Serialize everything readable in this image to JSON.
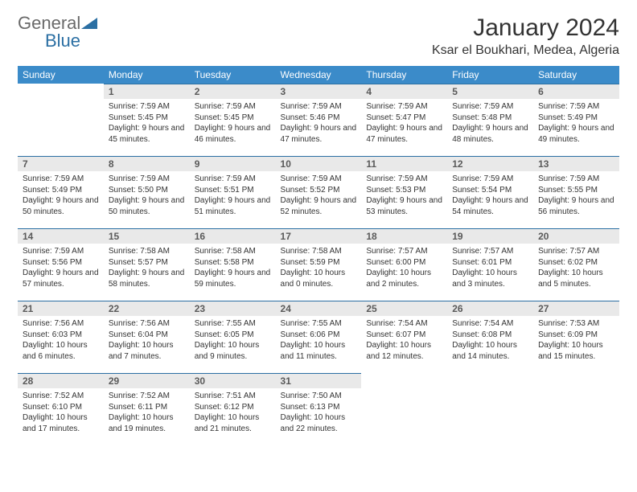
{
  "brand": {
    "name_part1": "General",
    "name_part2": "Blue",
    "part1_color": "#6a6a6a",
    "part2_color": "#2b6fa3",
    "triangle_color": "#2b6fa3"
  },
  "title": "January 2024",
  "location": "Ksar el Boukhari, Medea, Algeria",
  "colors": {
    "header_bg": "#3b8bc9",
    "header_text": "#ffffff",
    "daynum_bg": "#e9e9e9",
    "daynum_border": "#2b6fa3",
    "text": "#333333"
  },
  "weekdays": [
    "Sunday",
    "Monday",
    "Tuesday",
    "Wednesday",
    "Thursday",
    "Friday",
    "Saturday"
  ],
  "weeks": [
    [
      {
        "n": "",
        "sr": "",
        "ss": "",
        "dl": "",
        "empty": true
      },
      {
        "n": "1",
        "sr": "Sunrise: 7:59 AM",
        "ss": "Sunset: 5:45 PM",
        "dl": "Daylight: 9 hours and 45 minutes."
      },
      {
        "n": "2",
        "sr": "Sunrise: 7:59 AM",
        "ss": "Sunset: 5:45 PM",
        "dl": "Daylight: 9 hours and 46 minutes."
      },
      {
        "n": "3",
        "sr": "Sunrise: 7:59 AM",
        "ss": "Sunset: 5:46 PM",
        "dl": "Daylight: 9 hours and 47 minutes."
      },
      {
        "n": "4",
        "sr": "Sunrise: 7:59 AM",
        "ss": "Sunset: 5:47 PM",
        "dl": "Daylight: 9 hours and 47 minutes."
      },
      {
        "n": "5",
        "sr": "Sunrise: 7:59 AM",
        "ss": "Sunset: 5:48 PM",
        "dl": "Daylight: 9 hours and 48 minutes."
      },
      {
        "n": "6",
        "sr": "Sunrise: 7:59 AM",
        "ss": "Sunset: 5:49 PM",
        "dl": "Daylight: 9 hours and 49 minutes."
      }
    ],
    [
      {
        "n": "7",
        "sr": "Sunrise: 7:59 AM",
        "ss": "Sunset: 5:49 PM",
        "dl": "Daylight: 9 hours and 50 minutes."
      },
      {
        "n": "8",
        "sr": "Sunrise: 7:59 AM",
        "ss": "Sunset: 5:50 PM",
        "dl": "Daylight: 9 hours and 50 minutes."
      },
      {
        "n": "9",
        "sr": "Sunrise: 7:59 AM",
        "ss": "Sunset: 5:51 PM",
        "dl": "Daylight: 9 hours and 51 minutes."
      },
      {
        "n": "10",
        "sr": "Sunrise: 7:59 AM",
        "ss": "Sunset: 5:52 PM",
        "dl": "Daylight: 9 hours and 52 minutes."
      },
      {
        "n": "11",
        "sr": "Sunrise: 7:59 AM",
        "ss": "Sunset: 5:53 PM",
        "dl": "Daylight: 9 hours and 53 minutes."
      },
      {
        "n": "12",
        "sr": "Sunrise: 7:59 AM",
        "ss": "Sunset: 5:54 PM",
        "dl": "Daylight: 9 hours and 54 minutes."
      },
      {
        "n": "13",
        "sr": "Sunrise: 7:59 AM",
        "ss": "Sunset: 5:55 PM",
        "dl": "Daylight: 9 hours and 56 minutes."
      }
    ],
    [
      {
        "n": "14",
        "sr": "Sunrise: 7:59 AM",
        "ss": "Sunset: 5:56 PM",
        "dl": "Daylight: 9 hours and 57 minutes."
      },
      {
        "n": "15",
        "sr": "Sunrise: 7:58 AM",
        "ss": "Sunset: 5:57 PM",
        "dl": "Daylight: 9 hours and 58 minutes."
      },
      {
        "n": "16",
        "sr": "Sunrise: 7:58 AM",
        "ss": "Sunset: 5:58 PM",
        "dl": "Daylight: 9 hours and 59 minutes."
      },
      {
        "n": "17",
        "sr": "Sunrise: 7:58 AM",
        "ss": "Sunset: 5:59 PM",
        "dl": "Daylight: 10 hours and 0 minutes."
      },
      {
        "n": "18",
        "sr": "Sunrise: 7:57 AM",
        "ss": "Sunset: 6:00 PM",
        "dl": "Daylight: 10 hours and 2 minutes."
      },
      {
        "n": "19",
        "sr": "Sunrise: 7:57 AM",
        "ss": "Sunset: 6:01 PM",
        "dl": "Daylight: 10 hours and 3 minutes."
      },
      {
        "n": "20",
        "sr": "Sunrise: 7:57 AM",
        "ss": "Sunset: 6:02 PM",
        "dl": "Daylight: 10 hours and 5 minutes."
      }
    ],
    [
      {
        "n": "21",
        "sr": "Sunrise: 7:56 AM",
        "ss": "Sunset: 6:03 PM",
        "dl": "Daylight: 10 hours and 6 minutes."
      },
      {
        "n": "22",
        "sr": "Sunrise: 7:56 AM",
        "ss": "Sunset: 6:04 PM",
        "dl": "Daylight: 10 hours and 7 minutes."
      },
      {
        "n": "23",
        "sr": "Sunrise: 7:55 AM",
        "ss": "Sunset: 6:05 PM",
        "dl": "Daylight: 10 hours and 9 minutes."
      },
      {
        "n": "24",
        "sr": "Sunrise: 7:55 AM",
        "ss": "Sunset: 6:06 PM",
        "dl": "Daylight: 10 hours and 11 minutes."
      },
      {
        "n": "25",
        "sr": "Sunrise: 7:54 AM",
        "ss": "Sunset: 6:07 PM",
        "dl": "Daylight: 10 hours and 12 minutes."
      },
      {
        "n": "26",
        "sr": "Sunrise: 7:54 AM",
        "ss": "Sunset: 6:08 PM",
        "dl": "Daylight: 10 hours and 14 minutes."
      },
      {
        "n": "27",
        "sr": "Sunrise: 7:53 AM",
        "ss": "Sunset: 6:09 PM",
        "dl": "Daylight: 10 hours and 15 minutes."
      }
    ],
    [
      {
        "n": "28",
        "sr": "Sunrise: 7:52 AM",
        "ss": "Sunset: 6:10 PM",
        "dl": "Daylight: 10 hours and 17 minutes."
      },
      {
        "n": "29",
        "sr": "Sunrise: 7:52 AM",
        "ss": "Sunset: 6:11 PM",
        "dl": "Daylight: 10 hours and 19 minutes."
      },
      {
        "n": "30",
        "sr": "Sunrise: 7:51 AM",
        "ss": "Sunset: 6:12 PM",
        "dl": "Daylight: 10 hours and 21 minutes."
      },
      {
        "n": "31",
        "sr": "Sunrise: 7:50 AM",
        "ss": "Sunset: 6:13 PM",
        "dl": "Daylight: 10 hours and 22 minutes."
      },
      {
        "n": "",
        "sr": "",
        "ss": "",
        "dl": "",
        "empty": true
      },
      {
        "n": "",
        "sr": "",
        "ss": "",
        "dl": "",
        "empty": true
      },
      {
        "n": "",
        "sr": "",
        "ss": "",
        "dl": "",
        "empty": true
      }
    ]
  ]
}
